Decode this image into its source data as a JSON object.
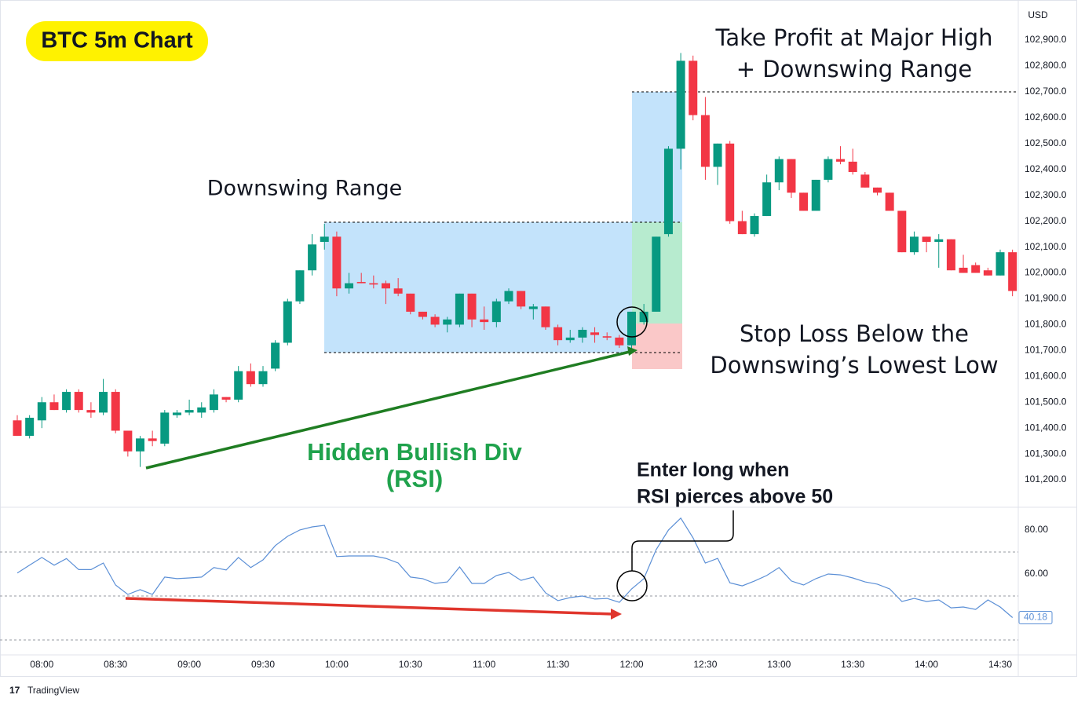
{
  "header": {
    "title": "BTC 5m Chart"
  },
  "footer": {
    "brand": "TradingView"
  },
  "chart_data": [
    {
      "type": "candlestick",
      "currency": "USD",
      "categories": [
        null,
        null,
        "08:00",
        null,
        null,
        null,
        null,
        null,
        "08:30",
        null,
        null,
        null,
        null,
        null,
        "09:00",
        null,
        null,
        null,
        null,
        null,
        "09:30",
        null,
        null,
        null,
        null,
        null,
        "10:00",
        null,
        null,
        null,
        null,
        null,
        "10:30",
        null,
        null,
        null,
        null,
        null,
        "11:00",
        null,
        null,
        null,
        null,
        null,
        "11:30",
        null,
        null,
        null,
        null,
        null,
        "12:00",
        null,
        null,
        null,
        null,
        null,
        "12:30",
        null,
        null,
        null,
        null,
        null,
        "13:00",
        null,
        null,
        null,
        null,
        null,
        "13:30",
        null,
        null,
        null,
        null,
        null,
        "14:00",
        null,
        null,
        null,
        null,
        null,
        "14:30",
        null
      ],
      "open": [
        101430,
        101370,
        101430,
        101500,
        101470,
        101540,
        101470,
        101460,
        101540,
        101390,
        101310,
        101360,
        101340,
        101450,
        101460,
        101460,
        101470,
        101520,
        101510,
        101620,
        101570,
        101630,
        101730,
        101890,
        102010,
        102120,
        102140,
        101940,
        101965,
        101960,
        101960,
        101940,
        101920,
        101850,
        101830,
        101800,
        101800,
        101920,
        101820,
        101810,
        101890,
        101930,
        101860,
        101870,
        101790,
        101740,
        101750,
        101770,
        101755,
        101750,
        101720,
        101810,
        101850,
        102150,
        102480,
        102820,
        102610,
        102410,
        102500,
        102200,
        102150,
        102220,
        102350,
        102440,
        102310,
        102240,
        102360,
        102440,
        102430,
        102380,
        102330,
        102310,
        102240,
        102080,
        102140,
        102120,
        102130,
        102020,
        102030,
        102010,
        101990,
        102080
      ],
      "high": [
        101450,
        101450,
        101520,
        101530,
        101550,
        101550,
        101500,
        101590,
        101550,
        101390,
        101370,
        101390,
        101470,
        101470,
        101510,
        101500,
        101550,
        101520,
        101640,
        101650,
        101640,
        101740,
        101900,
        102010,
        102150,
        102190,
        102160,
        102000,
        102000,
        101990,
        101970,
        101980,
        101920,
        101850,
        101840,
        101830,
        101920,
        101920,
        101870,
        101900,
        101940,
        101930,
        101880,
        101870,
        101800,
        101780,
        101790,
        101790,
        101770,
        101760,
        101850,
        101880,
        102140,
        102490,
        102850,
        102840,
        102680,
        102500,
        102510,
        102240,
        102230,
        102380,
        102450,
        102440,
        102310,
        102360,
        102450,
        102490,
        102480,
        102390,
        102330,
        102310,
        102240,
        102160,
        102140,
        102150,
        102130,
        102070,
        102040,
        102020,
        102090,
        102090
      ],
      "low": [
        101370,
        101360,
        101400,
        101470,
        101460,
        101460,
        101440,
        101450,
        101380,
        101290,
        101250,
        101330,
        101330,
        101440,
        101450,
        101440,
        101460,
        101500,
        101500,
        101560,
        101560,
        101620,
        101720,
        101880,
        101990,
        102090,
        101910,
        101920,
        101960,
        101940,
        101880,
        101910,
        101840,
        101820,
        101790,
        101770,
        101790,
        101790,
        101780,
        101790,
        101880,
        101860,
        101820,
        101780,
        101720,
        101730,
        101730,
        101730,
        101740,
        101710,
        101700,
        101800,
        101850,
        102140,
        102400,
        102590,
        102360,
        102340,
        102190,
        102150,
        102140,
        102220,
        102320,
        102290,
        102240,
        102240,
        102350,
        102420,
        102380,
        102330,
        102300,
        102240,
        102080,
        102070,
        102080,
        102020,
        102010,
        102000,
        102000,
        101990,
        101990,
        101910
      ],
      "close": [
        101370,
        101440,
        101500,
        101470,
        101540,
        101470,
        101460,
        101540,
        101390,
        101310,
        101360,
        101350,
        101460,
        101460,
        101470,
        101480,
        101530,
        101510,
        101620,
        101570,
        101620,
        101730,
        101890,
        102010,
        102110,
        102140,
        101940,
        101960,
        101960,
        101955,
        101940,
        101920,
        101850,
        101830,
        101800,
        101820,
        101920,
        101820,
        101810,
        101890,
        101930,
        101870,
        101870,
        101790,
        101740,
        101750,
        101780,
        101760,
        101750,
        101720,
        101850,
        101850,
        102140,
        102480,
        102820,
        102610,
        102410,
        102500,
        102200,
        102150,
        102220,
        102350,
        102440,
        102310,
        102240,
        102360,
        102440,
        102430,
        102390,
        102330,
        102310,
        102240,
        102080,
        102140,
        102120,
        102130,
        102010,
        102000,
        102000,
        101990,
        102080,
        101930
      ],
      "up_color": "#089981",
      "down_color": "#f23645",
      "ylim": [
        101097,
        103055
      ],
      "yticks": [
        {
          "value": 101200,
          "label": "101,200.0"
        },
        {
          "value": 101300,
          "label": "101,300.0"
        },
        {
          "value": 101400,
          "label": "101,400.0"
        },
        {
          "value": 101500,
          "label": "101,500.0"
        },
        {
          "value": 101600,
          "label": "101,600.0"
        },
        {
          "value": 101700,
          "label": "101,700.0"
        },
        {
          "value": 101800,
          "label": "101,800.0"
        },
        {
          "value": 101900,
          "label": "101,900.0"
        },
        {
          "value": 102000,
          "label": "102,000.0"
        },
        {
          "value": 102100,
          "label": "102,100.0"
        },
        {
          "value": 102200,
          "label": "102,200.0"
        },
        {
          "value": 102300,
          "label": "102,300.0"
        },
        {
          "value": 102400,
          "label": "102,400.0"
        },
        {
          "value": 102500,
          "label": "102,500.0"
        },
        {
          "value": 102600,
          "label": "102,600.0"
        },
        {
          "value": 102700,
          "label": "102,700.0"
        },
        {
          "value": 102800,
          "label": "102,800.0"
        },
        {
          "value": 102900,
          "label": "102,900.0"
        }
      ],
      "grid": false,
      "annotations": {
        "downswing": "Downswing Range",
        "take_profit": [
          "Take Profit at Major High",
          "+ Downswing Range"
        ],
        "stop_loss": [
          "Stop Loss Below the",
          "Downswing’s Lowest Low"
        ],
        "divergence": [
          "Hidden Bullish Div",
          "(RSI)"
        ],
        "entry": [
          "Enter long when",
          "RSI pierces above 50"
        ]
      }
    },
    {
      "type": "line",
      "color": "#5b8fd6",
      "values": [
        60.4,
        64,
        67.5,
        64,
        67,
        62,
        62,
        65,
        55,
        50.7,
        52.9,
        50.7,
        58.6,
        57.9,
        58.2,
        58.6,
        62.9,
        61.8,
        67.5,
        62.9,
        66.4,
        72.9,
        77.1,
        80,
        81.4,
        82.1,
        67.9,
        68.2,
        68.2,
        68.2,
        67.1,
        65,
        58.6,
        57.9,
        55.7,
        56.4,
        63.2,
        55.7,
        55.7,
        59.3,
        60.7,
        57.1,
        58.6,
        51.4,
        47.9,
        49.3,
        50,
        48.6,
        48.9,
        47.1,
        53.2,
        57.9,
        71.1,
        80,
        85.4,
        76.4,
        65,
        67.1,
        56,
        54.6,
        56.8,
        59.3,
        62.9,
        56.8,
        55,
        57.9,
        60,
        59.6,
        58.2,
        56.4,
        55.4,
        53.2,
        47.5,
        48.9,
        47.5,
        48.2,
        44.6,
        45,
        43.9,
        48.2,
        45,
        40.18
      ],
      "ylim": [
        23.6,
        89.6
      ],
      "yticks": [
        {
          "value": 60,
          "label": "60.00"
        },
        {
          "value": 80,
          "label": "80.00"
        }
      ],
      "levels": [
        30,
        50,
        70
      ]
    }
  ]
}
